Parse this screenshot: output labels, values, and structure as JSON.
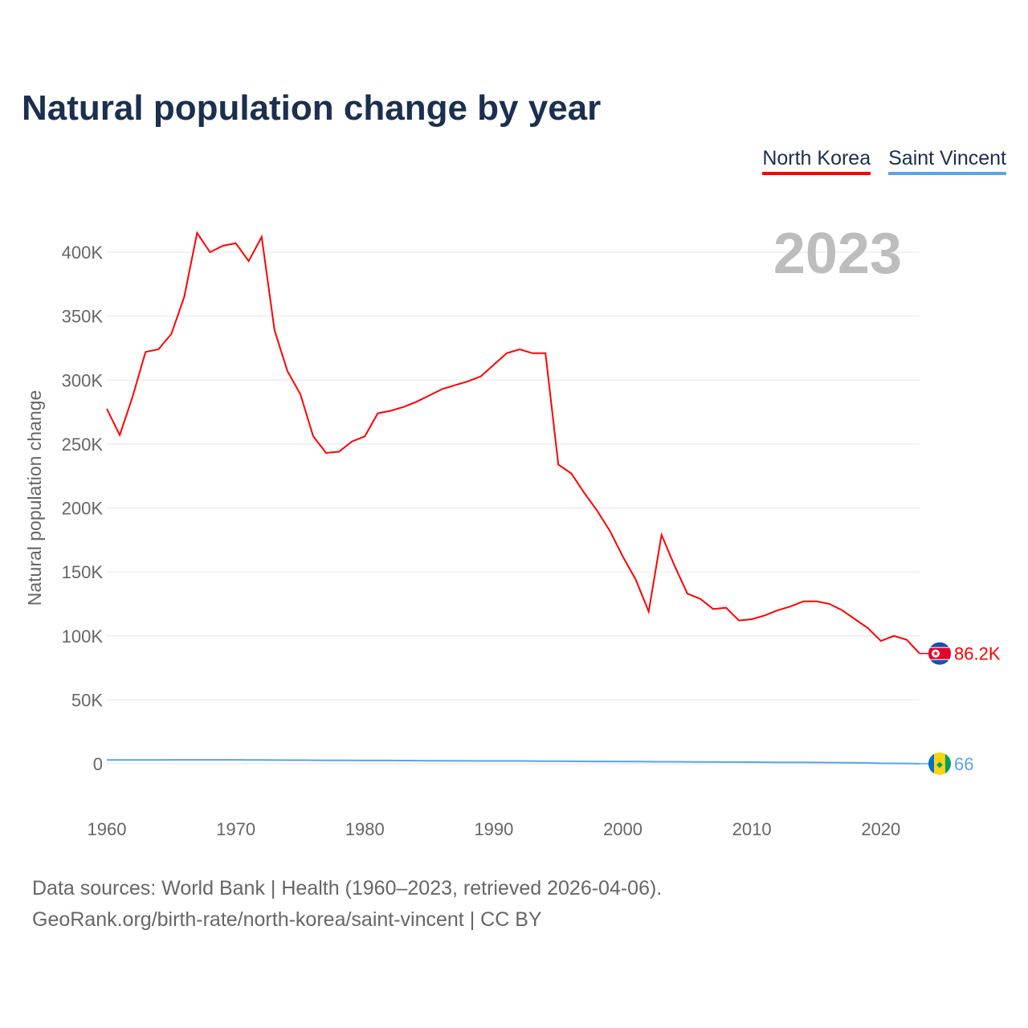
{
  "chart_data": {
    "type": "line",
    "title": "Natural population change by year",
    "ylabel": "Natural population change",
    "xlabel": "",
    "year_label": "2023",
    "x": [
      1960,
      1961,
      1962,
      1963,
      1964,
      1965,
      1966,
      1967,
      1968,
      1969,
      1970,
      1971,
      1972,
      1973,
      1974,
      1975,
      1976,
      1977,
      1978,
      1979,
      1980,
      1981,
      1982,
      1983,
      1984,
      1985,
      1986,
      1987,
      1988,
      1989,
      1990,
      1991,
      1992,
      1993,
      1994,
      1995,
      1996,
      1997,
      1998,
      1999,
      2000,
      2001,
      2002,
      2003,
      2004,
      2005,
      2006,
      2007,
      2008,
      2009,
      2010,
      2011,
      2012,
      2013,
      2014,
      2015,
      2016,
      2017,
      2018,
      2019,
      2020,
      2021,
      2022,
      2023
    ],
    "series": [
      {
        "name": "North Korea",
        "color": "#ff0000",
        "end_label": "86.2K",
        "values": [
          277500,
          257000,
          287000,
          322000,
          324000,
          336000,
          365000,
          415000,
          400000,
          405000,
          407000,
          393000,
          412000,
          339000,
          307000,
          289000,
          256000,
          243000,
          244000,
          252000,
          256000,
          274000,
          276000,
          279000,
          283000,
          288000,
          293000,
          296000,
          299000,
          303000,
          312000,
          321000,
          324000,
          321000,
          321000,
          234000,
          227000,
          212000,
          198000,
          182000,
          162000,
          144000,
          119000,
          179000,
          155000,
          133000,
          129000,
          121000,
          122000,
          112000,
          113000,
          116000,
          120000,
          123000,
          127000,
          127000,
          125000,
          120000,
          113000,
          106000,
          96000,
          100000,
          97000,
          86200
        ]
      },
      {
        "name": "Saint Vincent",
        "color": "#5aa3e8",
        "end_label": "66",
        "values": [
          3000,
          3000,
          3000,
          3000,
          3000,
          3050,
          3100,
          3100,
          3100,
          3100,
          3050,
          3000,
          2950,
          2900,
          2850,
          2800,
          2750,
          2700,
          2700,
          2650,
          2600,
          2600,
          2550,
          2500,
          2450,
          2400,
          2300,
          2250,
          2250,
          2200,
          2200,
          2200,
          2200,
          2150,
          2100,
          2000,
          1950,
          1900,
          1850,
          1800,
          1750,
          1700,
          1650,
          1600,
          1550,
          1500,
          1450,
          1400,
          1350,
          1300,
          1250,
          1200,
          1150,
          1100,
          1050,
          1000,
          950,
          900,
          800,
          700,
          400,
          300,
          250,
          66
        ]
      }
    ],
    "yticks": [
      0,
      50000,
      100000,
      150000,
      200000,
      250000,
      300000,
      350000,
      400000
    ],
    "ytick_labels": [
      "0",
      "50K",
      "100K",
      "150K",
      "200K",
      "250K",
      "300K",
      "350K",
      "400K"
    ],
    "xticks": [
      1960,
      1970,
      1980,
      1990,
      2000,
      2010,
      2020
    ],
    "ylim": [
      -25000,
      420000
    ],
    "xlim": [
      1960,
      2023
    ],
    "grid": true,
    "legend_placement": "top-right"
  },
  "source": {
    "line1": "Data sources: World Bank | Health (1960–2023, retrieved 2026-04-06).",
    "line2": "GeoRank.org/birth-rate/north-korea/saint-vincent | CC BY"
  }
}
